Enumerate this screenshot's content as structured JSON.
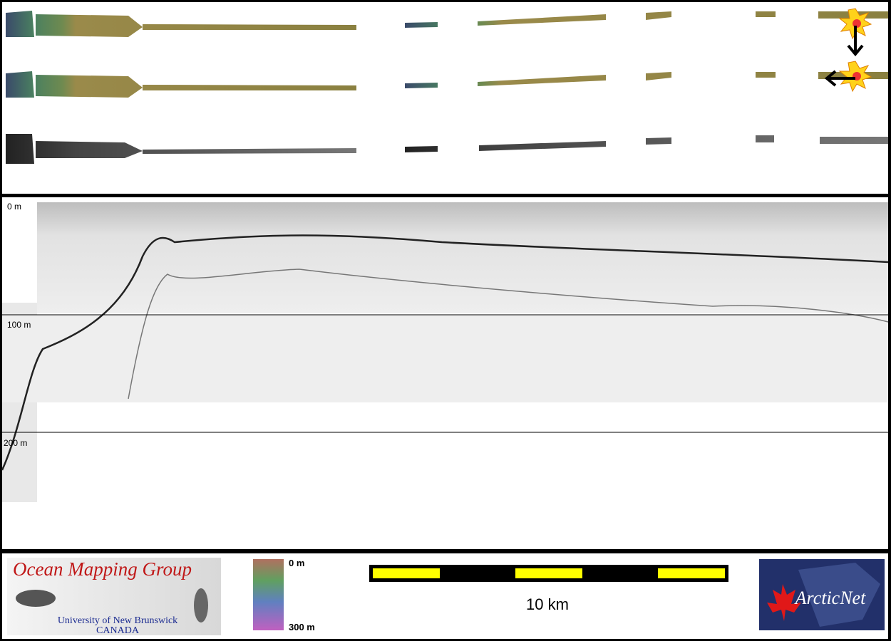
{
  "profile": {
    "depth_labels": [
      "0 m",
      "100 m",
      "200 m"
    ]
  },
  "logo": {
    "title": "Ocean Mapping Group",
    "university": "University of New Brunswick",
    "country": "CANADA"
  },
  "colorbar": {
    "top_label": "0 m",
    "bottom_label": "300 m"
  },
  "scalebar": {
    "label": "10 km"
  },
  "partner": {
    "name": "ArcticNet"
  }
}
